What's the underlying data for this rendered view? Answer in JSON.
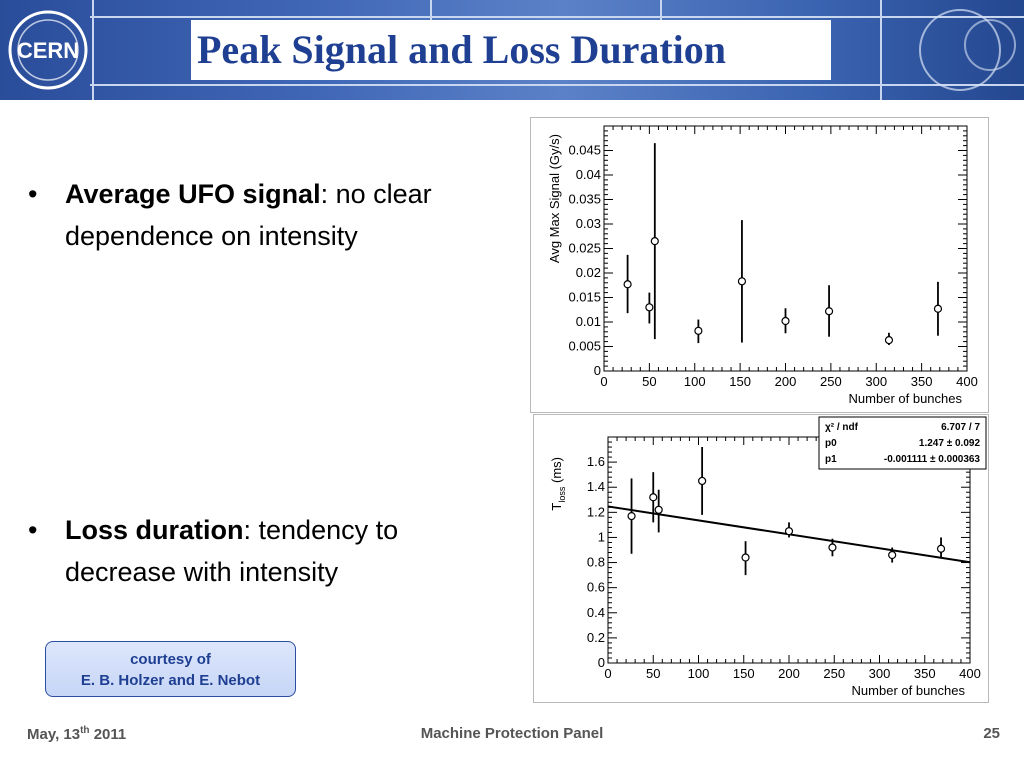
{
  "slide": {
    "title": "Peak Signal and Loss Duration",
    "logo_text": "CERN",
    "bullets": [
      {
        "bold": "Average UFO signal",
        "rest": ": no clear dependence on intensity"
      },
      {
        "bold": "Loss duration",
        "rest": ": tendency to decrease with intensity"
      }
    ],
    "courtesy": {
      "line1": "courtesy of",
      "line2": "E. B. Holzer and E. Nebot"
    },
    "footer": {
      "date": "May, 13",
      "date_sup": "th",
      "date_year": " 2011",
      "center": "Machine Protection Panel",
      "page": "25"
    }
  },
  "chart_data": [
    {
      "type": "scatter",
      "xlabel": "Number of bunches",
      "ylabel": "Avg Max Signal (Gy/s)",
      "xlim": [
        0,
        400
      ],
      "ylim": [
        0,
        0.05
      ],
      "xticks": [
        "0",
        "50",
        "100",
        "150",
        "200",
        "250",
        "300",
        "350",
        "400"
      ],
      "yticks": [
        "0",
        "0.005",
        "0.01",
        "0.015",
        "0.02",
        "0.025",
        "0.03",
        "0.035",
        "0.04",
        "0.045"
      ],
      "grid": false,
      "points": [
        {
          "x": 26,
          "y": 0.0177,
          "lo": 0.0118,
          "hi": 0.0237
        },
        {
          "x": 50,
          "y": 0.013,
          "lo": 0.0097,
          "hi": 0.016
        },
        {
          "x": 56,
          "y": 0.0265,
          "lo": 0.0065,
          "hi": 0.0465
        },
        {
          "x": 104,
          "y": 0.0082,
          "lo": 0.0057,
          "hi": 0.0105
        },
        {
          "x": 152,
          "y": 0.0183,
          "lo": 0.0058,
          "hi": 0.0308
        },
        {
          "x": 200,
          "y": 0.0102,
          "lo": 0.0077,
          "hi": 0.0128
        },
        {
          "x": 248,
          "y": 0.0122,
          "lo": 0.007,
          "hi": 0.0175
        },
        {
          "x": 314,
          "y": 0.0063,
          "lo": 0.0053,
          "hi": 0.0078
        },
        {
          "x": 368,
          "y": 0.0127,
          "lo": 0.0072,
          "hi": 0.0182
        }
      ]
    },
    {
      "type": "scatter",
      "xlabel": "Number of bunches",
      "ylabel": "T",
      "ylabel_sub": "loss",
      "ylabel_unit": " (ms)",
      "xlim": [
        0,
        400
      ],
      "ylim": [
        0,
        1.8
      ],
      "xticks": [
        "0",
        "50",
        "100",
        "150",
        "200",
        "250",
        "300",
        "350",
        "400"
      ],
      "yticks": [
        "0",
        "0.2",
        "0.4",
        "0.6",
        "0.8",
        "1",
        "1.2",
        "1.4",
        "1.6"
      ],
      "grid": false,
      "points": [
        {
          "x": 26,
          "y": 1.17,
          "lo": 0.87,
          "hi": 1.47
        },
        {
          "x": 50,
          "y": 1.32,
          "lo": 1.12,
          "hi": 1.52
        },
        {
          "x": 56,
          "y": 1.22,
          "lo": 1.04,
          "hi": 1.38
        },
        {
          "x": 104,
          "y": 1.45,
          "lo": 1.18,
          "hi": 1.72
        },
        {
          "x": 152,
          "y": 0.84,
          "lo": 0.7,
          "hi": 0.97
        },
        {
          "x": 200,
          "y": 1.05,
          "lo": 1.0,
          "hi": 1.12
        },
        {
          "x": 248,
          "y": 0.92,
          "lo": 0.85,
          "hi": 0.99
        },
        {
          "x": 314,
          "y": 0.86,
          "lo": 0.8,
          "hi": 0.92
        },
        {
          "x": 368,
          "y": 0.91,
          "lo": 0.84,
          "hi": 1.0
        }
      ],
      "fit": {
        "p0": 1.247,
        "p1": -0.001111
      },
      "stats": [
        {
          "label": "χ² / ndf",
          "value": "6.707 / 7"
        },
        {
          "label": "p0",
          "value": "1.247 ± 0.092"
        },
        {
          "label": "p1",
          "value": "-0.001111 ± 0.000363"
        }
      ]
    }
  ]
}
